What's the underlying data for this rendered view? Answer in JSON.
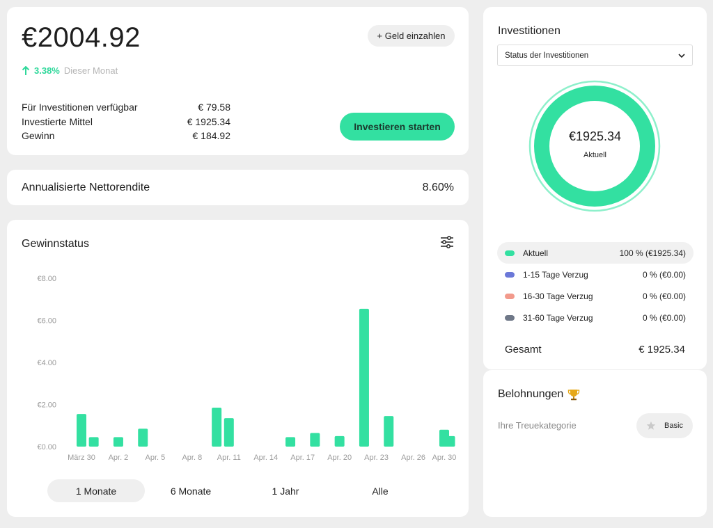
{
  "balance": {
    "total": "€2004.92",
    "deposit_label": "+ Geld einzahlen",
    "change_pct": "3.38%",
    "change_label": "Dieser Monat",
    "rows": [
      {
        "label": "Für Investitionen verfügbar",
        "value": "€ 79.58"
      },
      {
        "label": "Investierte Mittel",
        "value": "€ 1925.34"
      },
      {
        "label": "Gewinn",
        "value": "€ 184.92"
      }
    ],
    "invest_button": "Investieren starten"
  },
  "net_return": {
    "label": "Annualisierte Nettorendite",
    "value": "8.60%"
  },
  "profit": {
    "title": "Gewinnstatus",
    "tabs": [
      {
        "label": "1 Monate",
        "active": true
      },
      {
        "label": "6 Monate",
        "active": false
      },
      {
        "label": "1 Jahr",
        "active": false
      },
      {
        "label": "Alle",
        "active": false
      }
    ]
  },
  "chart_data": {
    "type": "bar",
    "y_tick_labels": [
      "€0.00",
      "€2.00",
      "€4.00",
      "€6.00",
      "€8.00"
    ],
    "y_ticks": [
      0,
      2,
      4,
      6,
      8
    ],
    "ylim": [
      0,
      8
    ],
    "x_tick_labels": [
      "März 30",
      "Apr. 2",
      "Apr. 5",
      "Apr. 8",
      "Apr. 11",
      "Apr. 14",
      "Apr. 17",
      "Apr. 20",
      "Apr. 23",
      "Apr. 26",
      "Apr. 30"
    ],
    "bars": [
      {
        "date": "März 30",
        "value": 1.55
      },
      {
        "date": "März 31",
        "value": 0.45
      },
      {
        "date": "Apr. 2",
        "value": 0.45
      },
      {
        "date": "Apr. 4",
        "value": 0.85
      },
      {
        "date": "Apr. 10",
        "value": 1.85
      },
      {
        "date": "Apr. 11",
        "value": 1.35
      },
      {
        "date": "Apr. 16",
        "value": 0.45
      },
      {
        "date": "Apr. 18",
        "value": 0.65
      },
      {
        "date": "Apr. 20",
        "value": 0.5
      },
      {
        "date": "Apr. 22",
        "value": 6.55
      },
      {
        "date": "Apr. 24",
        "value": 1.45
      },
      {
        "date": "Apr. 29",
        "value": 0.5
      },
      {
        "date": "Apr. 30",
        "value": 0.8
      }
    ],
    "grid": false,
    "bar_color": "#33e0a1"
  },
  "investments": {
    "title": "Investitionen",
    "select_value": "Status der Investitionen",
    "donut_value": "€1925.34",
    "donut_label": "Aktuell",
    "donut_color": "#33e0a1",
    "legend": [
      {
        "name": "Aktuell",
        "value": "100 % (€1925.34)",
        "color": "#33e0a1",
        "active": true
      },
      {
        "name": "1-15 Tage Verzug",
        "value": "0 % (€0.00)",
        "color": "#6b78d8",
        "active": false
      },
      {
        "name": "16-30 Tage Verzug",
        "value": "0 % (€0.00)",
        "color": "#f29a8c",
        "active": false
      },
      {
        "name": "31-60 Tage Verzug",
        "value": "0 % (€0.00)",
        "color": "#6f7888",
        "active": false
      }
    ],
    "total_label": "Gesamt",
    "total_value": "€ 1925.34"
  },
  "rewards": {
    "title": "Belohnungen",
    "loyalty_label": "Ihre Treuekategorie",
    "tier": "Basic"
  }
}
